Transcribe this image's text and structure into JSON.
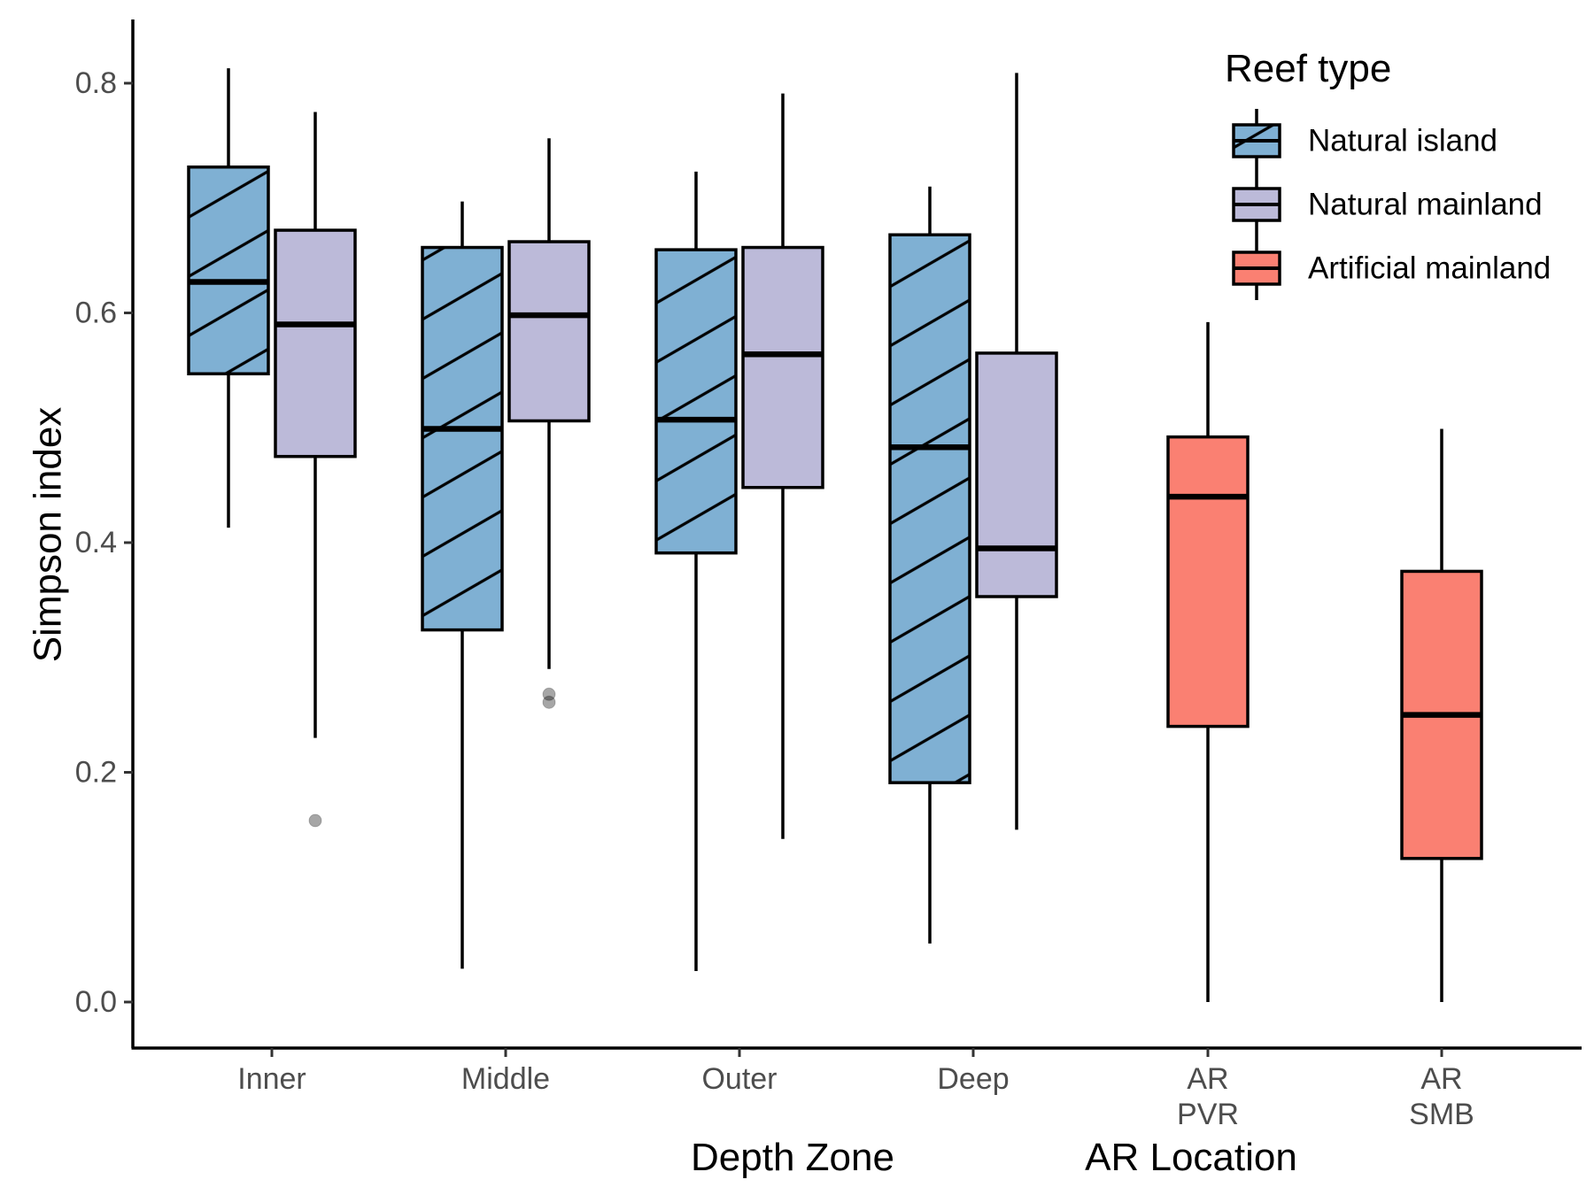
{
  "chart_data": {
    "type": "box",
    "title": "",
    "ylabel": "Simpson index",
    "ylim": [
      -0.04,
      0.855
    ],
    "yticks": [
      "0.0",
      "0.2",
      "0.4",
      "0.6",
      "0.8"
    ],
    "xlabels": [
      "Depth Zone",
      "AR Location"
    ],
    "categories": [
      {
        "lines": [
          "Inner"
        ]
      },
      {
        "lines": [
          "Middle"
        ]
      },
      {
        "lines": [
          "Outer"
        ]
      },
      {
        "lines": [
          "Deep"
        ]
      },
      {
        "lines": [
          "AR",
          "PVR"
        ]
      },
      {
        "lines": [
          "AR",
          "SMB"
        ]
      }
    ],
    "legend": {
      "title": "Reef type",
      "position": "top-right",
      "entries": [
        {
          "label": "Natural island",
          "color": "#7fb0d3",
          "pattern": "stripe"
        },
        {
          "label": "Natural mainland",
          "color": "#bcbad9",
          "pattern": "none"
        },
        {
          "label": "Artificial mainland",
          "color": "#fa8072",
          "pattern": "none"
        }
      ]
    },
    "series": [
      {
        "name": "Natural island",
        "color": "#7fb0d3",
        "pattern": "stripe",
        "boxes": [
          {
            "category": 0,
            "min": 0.413,
            "q1": 0.547,
            "median": 0.627,
            "q3": 0.727,
            "max": 0.813,
            "outliers": []
          },
          {
            "category": 1,
            "min": 0.029,
            "q1": 0.324,
            "median": 0.499,
            "q3": 0.657,
            "max": 0.697,
            "outliers": []
          },
          {
            "category": 2,
            "min": 0.027,
            "q1": 0.391,
            "median": 0.507,
            "q3": 0.655,
            "max": 0.723,
            "outliers": []
          },
          {
            "category": 3,
            "min": 0.051,
            "q1": 0.191,
            "median": 0.483,
            "q3": 0.668,
            "max": 0.71,
            "outliers": []
          }
        ]
      },
      {
        "name": "Natural mainland",
        "color": "#bcbad9",
        "pattern": "none",
        "boxes": [
          {
            "category": 0,
            "min": 0.23,
            "q1": 0.475,
            "median": 0.59,
            "q3": 0.672,
            "max": 0.775,
            "outliers": [
              0.158
            ]
          },
          {
            "category": 1,
            "min": 0.29,
            "q1": 0.506,
            "median": 0.598,
            "q3": 0.662,
            "max": 0.752,
            "outliers": [
              0.261,
              0.268
            ]
          },
          {
            "category": 2,
            "min": 0.142,
            "q1": 0.448,
            "median": 0.564,
            "q3": 0.657,
            "max": 0.791,
            "outliers": []
          },
          {
            "category": 3,
            "min": 0.15,
            "q1": 0.353,
            "median": 0.395,
            "q3": 0.565,
            "max": 0.809,
            "outliers": []
          }
        ]
      },
      {
        "name": "Artificial mainland",
        "color": "#fa8072",
        "pattern": "none",
        "boxes": [
          {
            "category": 4,
            "min": 0.0,
            "q1": 0.24,
            "median": 0.44,
            "q3": 0.492,
            "max": 0.592,
            "outliers": []
          },
          {
            "category": 5,
            "min": 0.0,
            "q1": 0.125,
            "median": 0.25,
            "q3": 0.375,
            "max": 0.499,
            "outliers": []
          }
        ]
      }
    ]
  }
}
